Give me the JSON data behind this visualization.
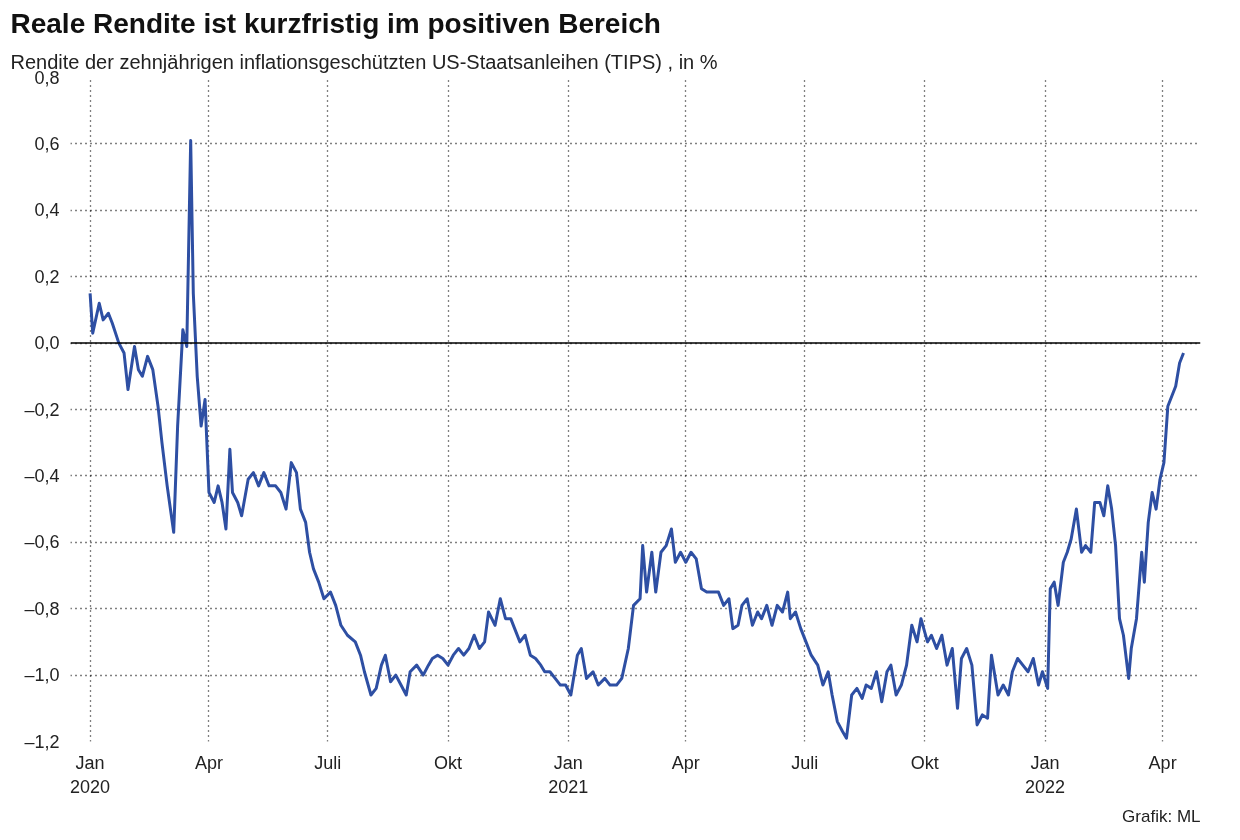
{
  "chart_data": {
    "type": "line",
    "title": "Reale Rendite ist kurzfristig im positiven Bereich",
    "subtitle": "Rendite der zehnjährigen inflationsgeschützten US-Staatsanleihen (TIPS) , in %",
    "annotations": [
      "Grafik: ML"
    ],
    "x": [
      "2020-01-01",
      "2020-01-03",
      "2020-01-08",
      "2020-01-11",
      "2020-01-15",
      "2020-01-18",
      "2020-01-23",
      "2020-01-27",
      "2020-01-30",
      "2020-02-04",
      "2020-02-07",
      "2020-02-10",
      "2020-02-14",
      "2020-02-18",
      "2020-02-22",
      "2020-02-25",
      "2020-02-29",
      "2020-03-05",
      "2020-03-08",
      "2020-03-12",
      "2020-03-15",
      "2020-03-18",
      "2020-03-20",
      "2020-03-23",
      "2020-03-26",
      "2020-03-29",
      "2020-04-01",
      "2020-04-05",
      "2020-04-08",
      "2020-04-11",
      "2020-04-14",
      "2020-04-17",
      "2020-04-19",
      "2020-04-23",
      "2020-04-26",
      "2020-05-01",
      "2020-05-05",
      "2020-05-09",
      "2020-05-13",
      "2020-05-17",
      "2020-05-22",
      "2020-05-26",
      "2020-05-30",
      "2020-06-03",
      "2020-06-07",
      "2020-06-10",
      "2020-06-14",
      "2020-06-17",
      "2020-06-20",
      "2020-06-24",
      "2020-06-28",
      "2020-07-03",
      "2020-07-07",
      "2020-07-11",
      "2020-07-16",
      "2020-07-22",
      "2020-07-26",
      "2020-07-29",
      "2020-08-03",
      "2020-08-07",
      "2020-08-11",
      "2020-08-14",
      "2020-08-18",
      "2020-08-22",
      "2020-08-26",
      "2020-08-30",
      "2020-09-02",
      "2020-09-07",
      "2020-09-12",
      "2020-09-16",
      "2020-09-19",
      "2020-09-23",
      "2020-09-27",
      "2020-10-01",
      "2020-10-05",
      "2020-10-09",
      "2020-10-13",
      "2020-10-17",
      "2020-10-21",
      "2020-10-25",
      "2020-10-29",
      "2020-11-01",
      "2020-11-06",
      "2020-11-10",
      "2020-11-14",
      "2020-11-18",
      "2020-11-21",
      "2020-11-25",
      "2020-11-29",
      "2020-12-03",
      "2020-12-07",
      "2020-12-11",
      "2020-12-14",
      "2020-12-18",
      "2020-12-22",
      "2020-12-26",
      "2020-12-30",
      "2021-01-03",
      "2021-01-08",
      "2021-01-11",
      "2021-01-15",
      "2021-01-20",
      "2021-01-24",
      "2021-01-29",
      "2021-02-02",
      "2021-02-07",
      "2021-02-11",
      "2021-02-16",
      "2021-02-20",
      "2021-02-25",
      "2021-02-27",
      "2021-03-02",
      "2021-03-06",
      "2021-03-09",
      "2021-03-13",
      "2021-03-17",
      "2021-03-21",
      "2021-03-24",
      "2021-03-28",
      "2021-04-01",
      "2021-04-05",
      "2021-04-09",
      "2021-04-13",
      "2021-04-17",
      "2021-04-21",
      "2021-04-26",
      "2021-04-30",
      "2021-05-04",
      "2021-05-07",
      "2021-05-11",
      "2021-05-14",
      "2021-05-18",
      "2021-05-22",
      "2021-05-26",
      "2021-05-29",
      "2021-06-02",
      "2021-06-06",
      "2021-06-10",
      "2021-06-14",
      "2021-06-18",
      "2021-06-20",
      "2021-06-24",
      "2021-06-28",
      "2021-07-02",
      "2021-07-06",
      "2021-07-11",
      "2021-07-15",
      "2021-07-19",
      "2021-07-22",
      "2021-07-26",
      "2021-07-30",
      "2021-08-02",
      "2021-08-06",
      "2021-08-10",
      "2021-08-14",
      "2021-08-17",
      "2021-08-21",
      "2021-08-25",
      "2021-08-29",
      "2021-09-02",
      "2021-09-05",
      "2021-09-09",
      "2021-09-13",
      "2021-09-17",
      "2021-09-21",
      "2021-09-25",
      "2021-09-28",
      "2021-10-03",
      "2021-10-06",
      "2021-10-10",
      "2021-10-14",
      "2021-10-18",
      "2021-10-22",
      "2021-10-26",
      "2021-10-29",
      "2021-11-02",
      "2021-11-06",
      "2021-11-10",
      "2021-11-14",
      "2021-11-18",
      "2021-11-21",
      "2021-11-26",
      "2021-11-30",
      "2021-12-04",
      "2021-12-07",
      "2021-12-11",
      "2021-12-15",
      "2021-12-19",
      "2021-12-23",
      "2021-12-27",
      "2021-12-30",
      "2022-01-03",
      "2022-01-05",
      "2022-01-08",
      "2022-01-11",
      "2022-01-15",
      "2022-01-18",
      "2022-01-21",
      "2022-01-25",
      "2022-01-29",
      "2022-02-01",
      "2022-02-05",
      "2022-02-08",
      "2022-02-12",
      "2022-02-15",
      "2022-02-18",
      "2022-02-21",
      "2022-02-24",
      "2022-02-27",
      "2022-03-02",
      "2022-03-06",
      "2022-03-08",
      "2022-03-12",
      "2022-03-16",
      "2022-03-18",
      "2022-03-21",
      "2022-03-24",
      "2022-03-27",
      "2022-03-30",
      "2022-04-02",
      "2022-04-05",
      "2022-04-08",
      "2022-04-11",
      "2022-04-14",
      "2022-04-17"
    ],
    "series": [
      {
        "color": "#2e4fa3",
        "values": [
          0.15,
          0.03,
          0.12,
          0.07,
          0.09,
          0.06,
          0.0,
          -0.03,
          -0.14,
          -0.01,
          -0.08,
          -0.1,
          -0.04,
          -0.08,
          -0.19,
          -0.3,
          -0.43,
          -0.57,
          -0.25,
          0.04,
          -0.01,
          0.61,
          0.15,
          -0.1,
          -0.25,
          -0.17,
          -0.45,
          -0.48,
          -0.43,
          -0.48,
          -0.56,
          -0.32,
          -0.45,
          -0.48,
          -0.52,
          -0.41,
          -0.39,
          -0.43,
          -0.39,
          -0.43,
          -0.43,
          -0.45,
          -0.5,
          -0.36,
          -0.39,
          -0.5,
          -0.54,
          -0.63,
          -0.68,
          -0.72,
          -0.77,
          -0.75,
          -0.79,
          -0.85,
          -0.88,
          -0.9,
          -0.94,
          -0.99,
          -1.06,
          -1.04,
          -0.97,
          -0.94,
          -1.02,
          -1.0,
          -1.03,
          -1.06,
          -0.99,
          -0.97,
          -1.0,
          -0.97,
          -0.95,
          -0.94,
          -0.95,
          -0.97,
          -0.94,
          -0.92,
          -0.94,
          -0.92,
          -0.88,
          -0.92,
          -0.9,
          -0.81,
          -0.85,
          -0.77,
          -0.83,
          -0.83,
          -0.86,
          -0.9,
          -0.88,
          -0.94,
          -0.95,
          -0.97,
          -0.99,
          -0.99,
          -1.01,
          -1.03,
          -1.03,
          -1.06,
          -0.94,
          -0.92,
          -1.01,
          -0.99,
          -1.03,
          -1.01,
          -1.03,
          -1.03,
          -1.01,
          -0.92,
          -0.79,
          -0.77,
          -0.61,
          -0.75,
          -0.63,
          -0.75,
          -0.63,
          -0.61,
          -0.56,
          -0.66,
          -0.63,
          -0.66,
          -0.63,
          -0.65,
          -0.74,
          -0.75,
          -0.75,
          -0.75,
          -0.79,
          -0.77,
          -0.86,
          -0.85,
          -0.79,
          -0.77,
          -0.85,
          -0.81,
          -0.83,
          -0.79,
          -0.85,
          -0.79,
          -0.81,
          -0.75,
          -0.83,
          -0.81,
          -0.86,
          -0.9,
          -0.94,
          -0.97,
          -1.03,
          -0.99,
          -1.06,
          -1.14,
          -1.17,
          -1.19,
          -1.06,
          -1.04,
          -1.07,
          -1.03,
          -1.04,
          -0.99,
          -1.08,
          -0.99,
          -0.97,
          -1.06,
          -1.03,
          -0.97,
          -0.85,
          -0.9,
          -0.83,
          -0.9,
          -0.88,
          -0.92,
          -0.88,
          -0.97,
          -0.92,
          -1.1,
          -0.95,
          -0.92,
          -0.97,
          -1.15,
          -1.12,
          -1.13,
          -0.94,
          -1.06,
          -1.03,
          -1.06,
          -0.99,
          -0.95,
          -0.97,
          -0.99,
          -0.95,
          -1.03,
          -0.99,
          -1.04,
          -0.74,
          -0.72,
          -0.79,
          -0.66,
          -0.63,
          -0.59,
          -0.5,
          -0.63,
          -0.61,
          -0.63,
          -0.48,
          -0.48,
          -0.52,
          -0.43,
          -0.5,
          -0.61,
          -0.83,
          -0.88,
          -1.01,
          -0.92,
          -0.83,
          -0.63,
          -0.72,
          -0.54,
          -0.45,
          -0.5,
          -0.41,
          -0.36,
          -0.19,
          -0.16,
          -0.13,
          -0.06,
          -0.03
        ]
      }
    ],
    "xlim": [
      "2019-12-17",
      "2022-04-30"
    ],
    "xticks": [
      {
        "value": "2020-01-01",
        "label": "Jan\n2020"
      },
      {
        "value": "2020-04-01",
        "label": "Apr"
      },
      {
        "value": "2020-07-01",
        "label": "Juli"
      },
      {
        "value": "2020-10-01",
        "label": "Okt"
      },
      {
        "value": "2021-01-01",
        "label": "Jan\n2021"
      },
      {
        "value": "2021-04-01",
        "label": "Apr"
      },
      {
        "value": "2021-07-01",
        "label": "Juli"
      },
      {
        "value": "2021-10-01",
        "label": "Okt"
      },
      {
        "value": "2022-01-01",
        "label": "Jan\n2022"
      },
      {
        "value": "2022-04-01",
        "label": "Apr"
      }
    ],
    "ylim": [
      -1.2,
      0.8
    ],
    "yticks": [
      {
        "value": 0.8,
        "label": "0,8"
      },
      {
        "value": 0.6,
        "label": "0,6"
      },
      {
        "value": 0.4,
        "label": "0,4"
      },
      {
        "value": 0.2,
        "label": "0,2"
      },
      {
        "value": 0.0,
        "label": "0,0"
      },
      {
        "value": -0.2,
        "label": "–0,2"
      },
      {
        "value": -0.4,
        "label": "–0,4"
      },
      {
        "value": -0.6,
        "label": "–0,6"
      },
      {
        "value": -0.8,
        "label": "–0,8"
      },
      {
        "value": -1.0,
        "label": "–1,0"
      },
      {
        "value": -1.2,
        "label": "–1,2"
      }
    ],
    "grid": true,
    "line_style": "solid",
    "ref_lines": [
      {
        "axis": "y",
        "value": 0,
        "color": "#000000"
      }
    ]
  }
}
